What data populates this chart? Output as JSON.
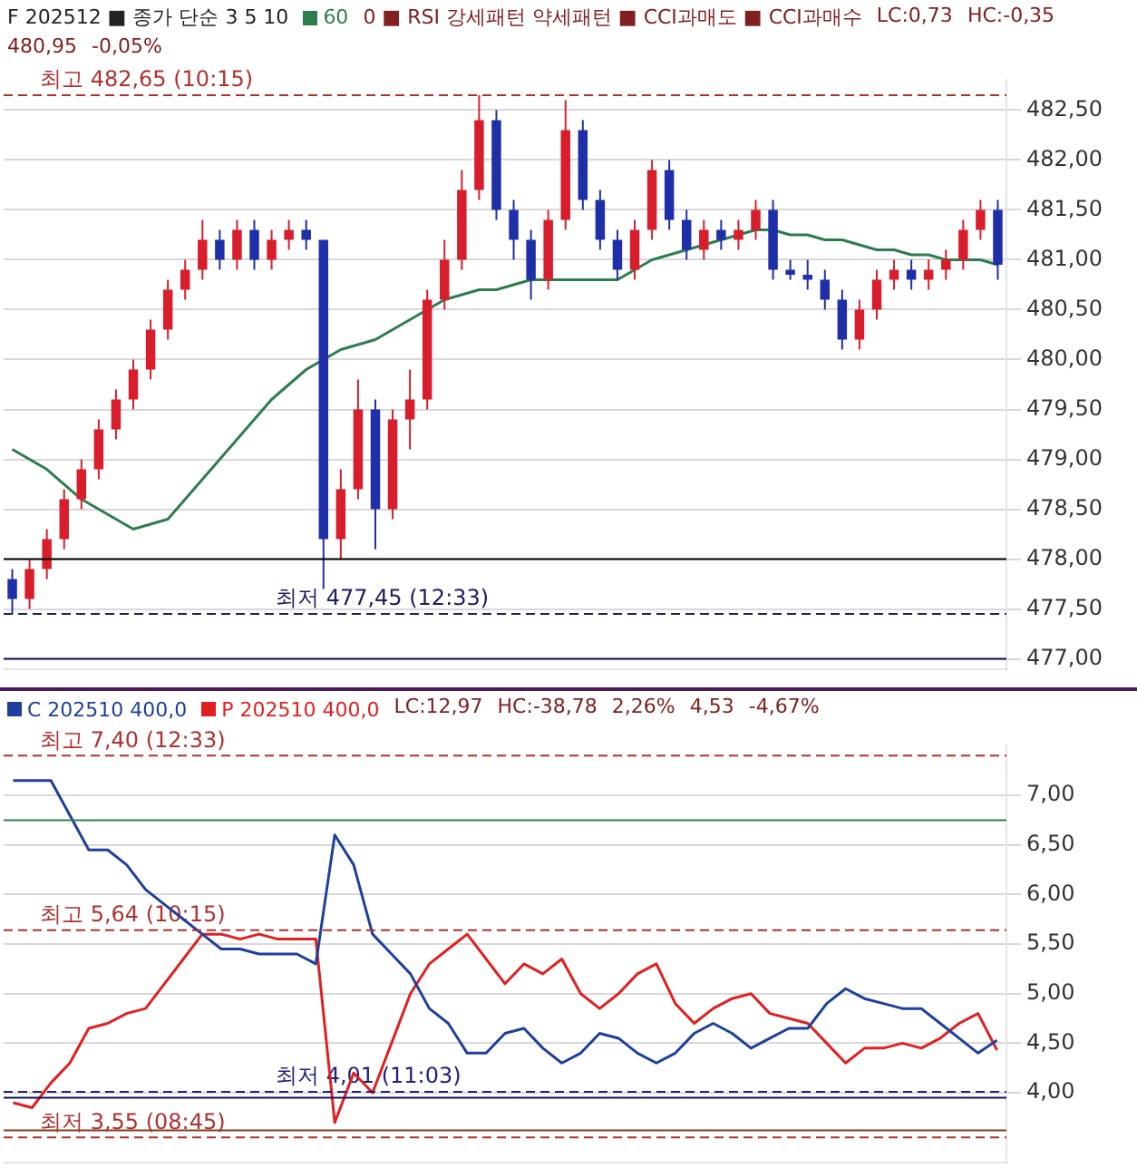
{
  "chart_data": [
    {
      "type": "candlestick",
      "title": "F 202512 ■ 종가 단순 3 5 10",
      "legend": "top left",
      "grid": "y",
      "ylim": [
        476.9,
        482.8
      ],
      "yticks": [
        {
          "value": 477,
          "label": "477,00"
        },
        {
          "value": 477.5,
          "label": "477,50"
        },
        {
          "value": 478,
          "label": "478,00"
        },
        {
          "value": 478.5,
          "label": "478,50"
        },
        {
          "value": 479,
          "label": "479,00"
        },
        {
          "value": 479.5,
          "label": "479,50"
        },
        {
          "value": 480,
          "label": "480,00"
        },
        {
          "value": 480.5,
          "label": "480,50"
        },
        {
          "value": 481,
          "label": "481,00"
        },
        {
          "value": 481.5,
          "label": "481,50"
        },
        {
          "value": 482,
          "label": "482,00"
        },
        {
          "value": 482.5,
          "label": "482,50"
        }
      ],
      "categories": [
        null,
        null,
        null,
        null,
        null,
        null,
        null,
        null,
        null,
        null,
        null,
        null,
        null,
        null,
        null,
        null,
        null,
        null,
        null,
        null,
        null,
        null,
        null,
        null,
        null,
        null,
        null,
        null,
        null,
        null,
        null,
        null,
        null,
        null,
        null,
        null,
        null,
        null,
        null,
        null,
        null,
        null,
        null,
        null,
        null,
        null,
        null,
        null,
        null,
        null,
        null,
        null,
        null,
        null,
        null,
        null,
        null,
        null
      ],
      "ohlc": [
        [
          477.8,
          477.9,
          477.45,
          477.6
        ],
        [
          477.6,
          478.0,
          477.5,
          477.9
        ],
        [
          477.9,
          478.3,
          477.8,
          478.2
        ],
        [
          478.2,
          478.7,
          478.1,
          478.6
        ],
        [
          478.6,
          479.0,
          478.5,
          478.9
        ],
        [
          478.9,
          479.4,
          478.8,
          479.3
        ],
        [
          479.3,
          479.7,
          479.2,
          479.6
        ],
        [
          479.6,
          480.0,
          479.5,
          479.9
        ],
        [
          479.9,
          480.4,
          479.8,
          480.3
        ],
        [
          480.3,
          480.8,
          480.2,
          480.7
        ],
        [
          480.7,
          481.0,
          480.6,
          480.9
        ],
        [
          480.9,
          481.4,
          480.8,
          481.2
        ],
        [
          481.2,
          481.3,
          480.9,
          481.0
        ],
        [
          481.0,
          481.4,
          480.9,
          481.3
        ],
        [
          481.3,
          481.4,
          480.9,
          481.0
        ],
        [
          481.0,
          481.3,
          480.9,
          481.2
        ],
        [
          481.2,
          481.4,
          481.1,
          481.3
        ],
        [
          481.3,
          481.4,
          481.1,
          481.2
        ],
        [
          481.2,
          481.2,
          477.7,
          478.2
        ],
        [
          478.2,
          478.9,
          478.0,
          478.7
        ],
        [
          478.7,
          479.8,
          478.6,
          479.5
        ],
        [
          479.5,
          479.6,
          478.1,
          478.5
        ],
        [
          478.5,
          479.5,
          478.4,
          479.4
        ],
        [
          479.4,
          479.9,
          479.1,
          479.6
        ],
        [
          479.6,
          480.7,
          479.5,
          480.6
        ],
        [
          480.6,
          481.2,
          480.5,
          481.0
        ],
        [
          481.0,
          481.9,
          480.9,
          481.7
        ],
        [
          481.7,
          482.65,
          481.6,
          482.4
        ],
        [
          482.4,
          482.5,
          481.4,
          481.5
        ],
        [
          481.5,
          481.6,
          481.0,
          481.2
        ],
        [
          481.2,
          481.3,
          480.6,
          480.8
        ],
        [
          480.8,
          481.5,
          480.7,
          481.4
        ],
        [
          481.4,
          482.6,
          481.3,
          482.3
        ],
        [
          482.3,
          482.4,
          481.5,
          481.6
        ],
        [
          481.6,
          481.7,
          481.1,
          481.2
        ],
        [
          481.2,
          481.3,
          480.8,
          480.9
        ],
        [
          480.9,
          481.4,
          480.8,
          481.3
        ],
        [
          481.3,
          482.0,
          481.2,
          481.9
        ],
        [
          481.9,
          482.0,
          481.3,
          481.4
        ],
        [
          481.4,
          481.5,
          481.0,
          481.1
        ],
        [
          481.1,
          481.4,
          481.0,
          481.3
        ],
        [
          481.3,
          481.4,
          481.1,
          481.2
        ],
        [
          481.2,
          481.4,
          481.1,
          481.3
        ],
        [
          481.3,
          481.6,
          481.2,
          481.5
        ],
        [
          481.5,
          481.6,
          480.8,
          480.9
        ],
        [
          480.9,
          481.0,
          480.8,
          480.85
        ],
        [
          480.85,
          481.0,
          480.7,
          480.8
        ],
        [
          480.8,
          480.9,
          480.5,
          480.6
        ],
        [
          480.6,
          480.7,
          480.1,
          480.2
        ],
        [
          480.2,
          480.6,
          480.1,
          480.5
        ],
        [
          480.5,
          480.9,
          480.4,
          480.8
        ],
        [
          480.8,
          481.0,
          480.7,
          480.9
        ],
        [
          480.9,
          481.0,
          480.7,
          480.8
        ],
        [
          480.8,
          481.0,
          480.7,
          480.9
        ],
        [
          480.9,
          481.1,
          480.8,
          481.0
        ],
        [
          481.0,
          481.4,
          480.9,
          481.3
        ],
        [
          481.3,
          481.6,
          481.2,
          481.5
        ],
        [
          481.5,
          481.6,
          480.8,
          480.95
        ]
      ],
      "series": [
        {
          "type": "line",
          "name": "60",
          "color": "#2e7d4f",
          "values": [
            479.1,
            479.0,
            478.9,
            478.75,
            478.6,
            478.5,
            478.4,
            478.3,
            478.35,
            478.4,
            478.6,
            478.8,
            479.0,
            479.2,
            479.4,
            479.6,
            479.75,
            479.9,
            480.0,
            480.1,
            480.15,
            480.2,
            480.3,
            480.4,
            480.5,
            480.6,
            480.65,
            480.7,
            480.7,
            480.75,
            480.8,
            480.8,
            480.8,
            480.8,
            480.8,
            480.8,
            480.9,
            481.0,
            481.05,
            481.1,
            481.15,
            481.2,
            481.25,
            481.3,
            481.3,
            481.25,
            481.25,
            481.2,
            481.2,
            481.15,
            481.1,
            481.1,
            481.05,
            481.05,
            481.0,
            481.0,
            481.0,
            480.95
          ]
        }
      ],
      "ref_lines": [
        {
          "axis": "y",
          "value": 482.65,
          "label": "최고 482,65 (10:15)",
          "color": "#b03030",
          "line_style": "dashed"
        },
        {
          "axis": "y",
          "value": 477.45,
          "label": "최저 477,45 (12:33)",
          "color": "#202060",
          "line_style": "dashed"
        },
        {
          "axis": "y",
          "value": 478,
          "color": "#000000",
          "line_style": "solid"
        },
        {
          "axis": "y",
          "value": 477,
          "color": "#10105a",
          "line_style": "solid"
        }
      ],
      "annotations": [
        "0 ■ RSI 강세패턴 약세패턴 ■ CCI과매도 ■ CCI과매수",
        "LC:0,73",
        "HC:-0,35",
        "480,95",
        "-0,05%"
      ]
    },
    {
      "type": "line",
      "legend": "top left",
      "grid": "y",
      "marker": "none",
      "line_style": "solid",
      "ylim": [
        3.3,
        7.5
      ],
      "yticks": [
        {
          "value": 4,
          "label": "4,00"
        },
        {
          "value": 4.5,
          "label": "4,50"
        },
        {
          "value": 5,
          "label": "5,00"
        },
        {
          "value": 5.5,
          "label": "5,50"
        },
        {
          "value": 6,
          "label": "6,00"
        },
        {
          "value": 6.5,
          "label": "6,50"
        },
        {
          "value": 7,
          "label": "7,00"
        }
      ],
      "categories": [
        null,
        null,
        null,
        null,
        null,
        null,
        null,
        null,
        null,
        null,
        null,
        null,
        null,
        null,
        null,
        null,
        null,
        null,
        null,
        null,
        null,
        null,
        null,
        null,
        null,
        null,
        null,
        null,
        null,
        null,
        null,
        null,
        null,
        null,
        null,
        null,
        null,
        null,
        null,
        null,
        null,
        null,
        null,
        null,
        null,
        null,
        null,
        null,
        null,
        null,
        null,
        null,
        null
      ],
      "series": [
        {
          "name": "C 202510 400,0",
          "color": "#1e3f9e",
          "values": [
            7.15,
            7.15,
            7.15,
            6.8,
            6.45,
            6.45,
            6.3,
            6.05,
            5.9,
            5.75,
            5.6,
            5.45,
            5.45,
            5.4,
            5.4,
            5.4,
            5.3,
            6.6,
            6.3,
            5.6,
            5.4,
            5.2,
            4.85,
            4.7,
            4.4,
            4.4,
            4.6,
            4.65,
            4.45,
            4.3,
            4.4,
            4.6,
            4.55,
            4.4,
            4.3,
            4.4,
            4.6,
            4.7,
            4.6,
            4.45,
            4.55,
            4.65,
            4.65,
            4.9,
            5.05,
            4.95,
            4.9,
            4.85,
            4.85,
            4.7,
            4.55,
            4.4,
            4.53
          ]
        },
        {
          "name": "P 202510 400,0",
          "color": "#e02020",
          "values": [
            3.9,
            3.85,
            4.1,
            4.3,
            4.65,
            4.7,
            4.8,
            4.85,
            5.1,
            5.35,
            5.6,
            5.6,
            5.55,
            5.6,
            5.55,
            5.55,
            5.55,
            3.7,
            4.2,
            4.0,
            4.5,
            5.0,
            5.3,
            5.45,
            5.6,
            5.35,
            5.1,
            5.3,
            5.2,
            5.35,
            5.0,
            4.85,
            5.0,
            5.2,
            5.3,
            4.9,
            4.7,
            4.85,
            4.95,
            5.0,
            4.8,
            4.75,
            4.7,
            4.5,
            4.3,
            4.45,
            4.45,
            4.5,
            4.45,
            4.55,
            4.7,
            4.8,
            4.43
          ]
        }
      ],
      "ref_lines": [
        {
          "axis": "y",
          "value": 7.4,
          "label": "최고 7,40 (12:33)",
          "color": "#b03030",
          "line_style": "dashed"
        },
        {
          "axis": "y",
          "value": 6.75,
          "color": "#2e7d4f",
          "line_style": "solid"
        },
        {
          "axis": "y",
          "value": 5.64,
          "label": "최고 5,64 (10:15)",
          "color": "#b03030",
          "line_style": "dashed"
        },
        {
          "axis": "y",
          "value": 4.01,
          "label": "최저 4,01 (11:03)",
          "color": "#202080",
          "line_style": "dashed"
        },
        {
          "axis": "y",
          "value": 3.95,
          "color": "#10105a",
          "line_style": "solid"
        },
        {
          "axis": "y",
          "value": 3.62,
          "color": "#8a3a1a",
          "line_style": "solid"
        },
        {
          "axis": "y",
          "value": 3.55,
          "label": "최저 3,55 (08:45)",
          "color": "#b03030",
          "line_style": "dashed"
        }
      ],
      "annotations": [
        "LC:12,97",
        "HC:-38,78",
        "2,26%",
        "4,53",
        "-4,67%"
      ]
    }
  ]
}
